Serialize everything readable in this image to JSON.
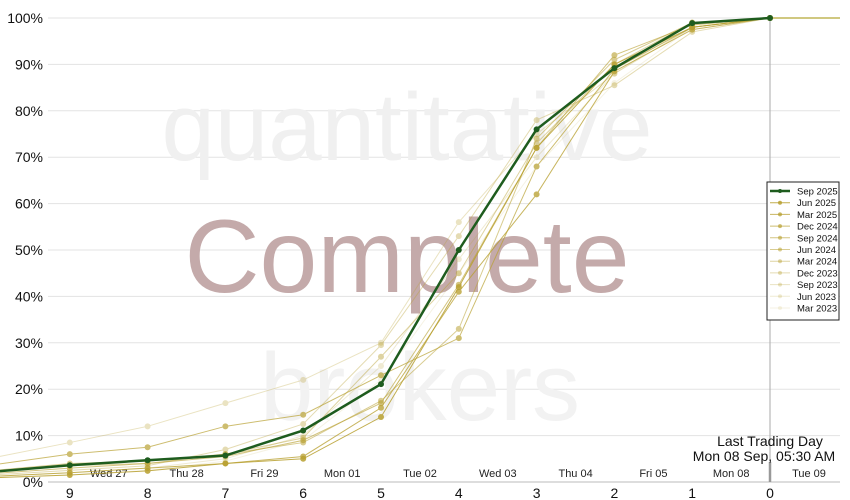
{
  "watermark": {
    "line1": "quantitative",
    "line2": "Complete",
    "line3": "brokers"
  },
  "annotation": {
    "line1": "Last Trading Day",
    "line2": "Mon 08 Sep, 05:30 AM"
  },
  "colors": {
    "primary": "#1e5c1e",
    "secondary": "#b8a030",
    "watermark_main": "#c4aaaa",
    "watermark_light": "#f0f0f0"
  },
  "chart_data": {
    "type": "line",
    "title": "",
    "xlabel": "",
    "ylabel": "",
    "x": [
      9,
      8,
      7,
      6,
      5,
      4,
      3,
      2,
      1,
      0
    ],
    "x_tick_labels": [
      "9",
      "8",
      "7",
      "6",
      "5",
      "4",
      "3",
      "2",
      "1",
      "0"
    ],
    "date_labels": [
      "Wed 27",
      "Thu 28",
      "Fri 29",
      "Mon 01",
      "Tue 02",
      "Wed 03",
      "Thu 04",
      "Fri 05",
      "Mon 08",
      "Tue 09"
    ],
    "y_tick_labels": [
      "0%",
      "10%",
      "20%",
      "30%",
      "40%",
      "50%",
      "60%",
      "70%",
      "80%",
      "90%",
      "100%"
    ],
    "ylim": [
      0,
      100
    ],
    "grid": true,
    "legend": "right",
    "series": [
      {
        "name": "Sep 2025",
        "values": [
          3.6,
          4.7,
          5.7,
          11.1,
          21.1,
          50,
          76,
          89.2,
          98.9,
          100
        ]
      },
      {
        "name": "Jun 2025",
        "values": [
          1.5,
          2.4,
          4.0,
          5.0,
          14.0,
          42,
          72,
          90,
          98,
          100
        ]
      },
      {
        "name": "Mar 2025",
        "values": [
          2.0,
          3.0,
          4.0,
          5.5,
          16,
          41,
          62,
          88.5,
          97.5,
          100
        ]
      },
      {
        "name": "Dec 2024",
        "values": [
          6,
          7.5,
          12,
          14.5,
          23,
          31,
          68,
          89,
          98,
          100
        ]
      },
      {
        "name": "Sep 2024",
        "values": [
          3,
          4,
          5.5,
          9,
          17,
          42.5,
          72,
          92,
          98.5,
          100
        ]
      },
      {
        "name": "Jun 2024",
        "values": [
          4,
          4.5,
          6,
          8.5,
          17.5,
          33,
          74,
          91,
          99,
          100
        ]
      },
      {
        "name": "Mar 2024",
        "values": [
          3.5,
          4,
          6,
          9.5,
          27,
          45,
          73,
          90,
          99,
          100
        ]
      },
      {
        "name": "Dec 2023",
        "values": [
          2.5,
          3.5,
          7,
          12.5,
          29.5,
          53,
          78,
          85.5,
          97,
          100
        ]
      },
      {
        "name": "Sep 2023",
        "values": [
          8.5,
          12,
          17,
          22,
          30,
          56,
          75,
          88,
          98,
          100
        ]
      },
      {
        "name": "Jun 2023",
        "values": [
          2,
          3,
          5,
          10,
          25,
          48,
          70,
          88,
          99,
          100
        ]
      },
      {
        "name": "Mar 2023",
        "values": [
          1.5,
          2.5,
          4.5,
          9,
          22,
          45,
          68,
          86,
          98,
          100
        ]
      }
    ]
  }
}
